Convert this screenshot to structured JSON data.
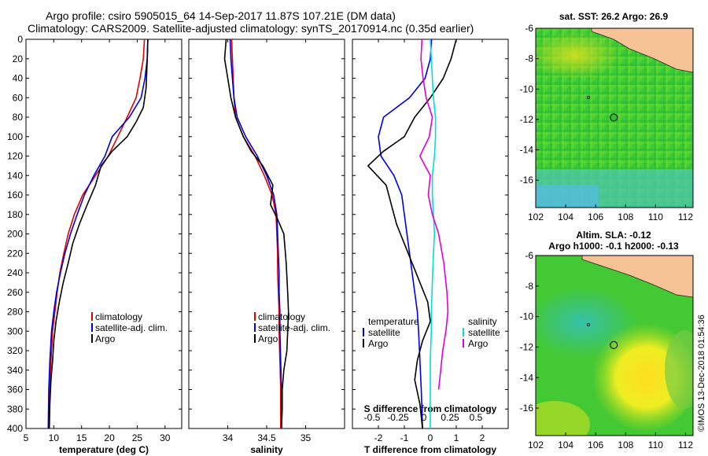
{
  "header": {
    "line1": "Argo profile: csiro 5905015_64 14-Sep-2017 11.87S 107.21E (DM data)",
    "line2": "Climatology: CARS2009. Satellite-adjusted climatology: synTS_20170914.nc (0.35d earlier)"
  },
  "chart_data": [
    {
      "type": "line",
      "name": "temperature-profile",
      "xlabel": "temperature (deg C)",
      "ylabel": "depth",
      "xlim": [
        5,
        33
      ],
      "ylim": [
        400,
        0
      ],
      "xticks": [
        5,
        10,
        15,
        20,
        25,
        30
      ],
      "yticks": [
        0,
        20,
        40,
        60,
        80,
        100,
        120,
        140,
        160,
        180,
        200,
        220,
        240,
        260,
        280,
        300,
        320,
        340,
        360,
        380,
        400
      ],
      "legend_position": "lower-right",
      "series": [
        {
          "name": "climatology",
          "color": "#e00000",
          "x": [
            26.3,
            26.1,
            25.5,
            24.8,
            23.2,
            21.5,
            19.8,
            17.5,
            15.2,
            13.7,
            12.6,
            11.8,
            11.1,
            10.6,
            10.2,
            9.8,
            9.5,
            9.3,
            9.1
          ],
          "y": [
            0,
            20,
            40,
            60,
            80,
            100,
            120,
            140,
            160,
            180,
            200,
            220,
            240,
            260,
            280,
            300,
            330,
            360,
            400
          ]
        },
        {
          "name": "satellite-adj. clim.",
          "color": "#0000dd",
          "x": [
            26.9,
            26.8,
            26.4,
            25.7,
            23.6,
            20.5,
            19.2,
            17.2,
            15.5,
            14.2,
            13.0,
            12.0,
            11.2,
            10.5,
            10.0,
            9.6,
            9.3,
            9.1,
            9.0
          ],
          "y": [
            0,
            20,
            40,
            60,
            80,
            100,
            120,
            140,
            160,
            180,
            200,
            220,
            240,
            260,
            280,
            300,
            330,
            360,
            400
          ]
        },
        {
          "name": "Argo",
          "color": "#000000",
          "x": [
            26.9,
            26.8,
            26.7,
            26.6,
            26.1,
            24.8,
            23.2,
            20.5,
            18.5,
            17.5,
            16.0,
            14.6,
            13.4,
            12.6,
            11.7,
            11.0,
            10.4,
            10.0,
            9.8,
            9.5,
            9.3,
            9.2
          ],
          "y": [
            0,
            20,
            35,
            50,
            70,
            85,
            100,
            115,
            130,
            150,
            170,
            190,
            210,
            230,
            250,
            270,
            290,
            310,
            330,
            350,
            375,
            400
          ]
        }
      ],
      "legend": [
        "climatology",
        "satellite-adj. clim.",
        "Argo"
      ]
    },
    {
      "type": "line",
      "name": "salinity-profile",
      "xlabel": "salinity",
      "ylabel": "depth",
      "xlim": [
        33.5,
        35.5
      ],
      "ylim": [
        400,
        0
      ],
      "xticks": [
        34,
        34.5,
        35
      ],
      "legend_position": "lower-right",
      "series": [
        {
          "name": "climatology",
          "color": "#e00000",
          "x": [
            34.05,
            34.06,
            34.07,
            34.08,
            34.1,
            34.2,
            34.35,
            34.47,
            34.57,
            34.62,
            34.63,
            34.64,
            34.64,
            34.65,
            34.66,
            34.66,
            34.67,
            34.68,
            34.68
          ],
          "y": [
            0,
            20,
            40,
            60,
            80,
            100,
            120,
            140,
            160,
            180,
            200,
            220,
            240,
            260,
            280,
            300,
            330,
            360,
            400
          ]
        },
        {
          "name": "satellite-adj. clim.",
          "color": "#0000dd",
          "x": [
            34.03,
            34.04,
            34.06,
            34.08,
            34.12,
            34.23,
            34.38,
            34.5,
            34.59,
            34.63,
            34.64,
            34.65,
            34.66,
            34.66,
            34.67,
            34.67,
            34.68,
            34.69,
            34.69
          ],
          "y": [
            0,
            20,
            40,
            60,
            80,
            100,
            120,
            140,
            160,
            180,
            200,
            220,
            240,
            260,
            280,
            300,
            330,
            360,
            400
          ]
        },
        {
          "name": "Argo",
          "color": "#000000",
          "x": [
            33.98,
            33.96,
            34.0,
            34.04,
            34.1,
            34.2,
            34.3,
            34.45,
            34.58,
            34.55,
            34.64,
            34.72,
            34.75,
            34.77,
            34.78,
            34.77,
            34.76,
            34.72,
            34.7,
            34.7,
            34.69
          ],
          "y": [
            0,
            20,
            40,
            60,
            80,
            100,
            115,
            130,
            150,
            170,
            185,
            200,
            230,
            260,
            280,
            300,
            320,
            340,
            360,
            380,
            400
          ]
        }
      ],
      "legend": [
        "climatology",
        "satellite-adj. clim.",
        "Argo"
      ]
    },
    {
      "type": "line",
      "name": "difference-profile",
      "xlabel": "T difference from climatology",
      "xlabel2": "S difference from climatology",
      "ylabel": "depth",
      "xlim": [
        -3,
        3
      ],
      "ylim": [
        400,
        0
      ],
      "xticks": [
        -2,
        -1,
        0,
        1,
        2
      ],
      "xticks_top": [
        -0.5,
        -0.25,
        0,
        0.25,
        0.5
      ],
      "series": [
        {
          "name": "temperature satellite",
          "color": "#0000dd",
          "axis": "T",
          "x": [
            0.05,
            0.0,
            -0.2,
            -0.8,
            -1.8,
            -2.0,
            -1.9,
            -1.4,
            -1.1,
            -1.0,
            -0.9,
            -0.8,
            -0.7,
            -0.6,
            -0.5,
            -0.45,
            -0.4,
            -0.35,
            -0.3
          ],
          "y": [
            0,
            20,
            40,
            60,
            80,
            100,
            120,
            140,
            160,
            180,
            200,
            220,
            240,
            260,
            280,
            300,
            330,
            360,
            400
          ]
        },
        {
          "name": "temperature Argo",
          "color": "#000000",
          "axis": "T",
          "x": [
            1.0,
            0.8,
            0.5,
            0.0,
            -0.6,
            -1.0,
            -1.8,
            -2.4,
            -1.7,
            -1.5,
            -1.3,
            -1.0,
            -0.7,
            -0.4,
            -0.1,
            0.0,
            -0.3,
            -0.5,
            -0.6,
            -0.4,
            -0.3
          ],
          "y": [
            0,
            20,
            40,
            60,
            80,
            100,
            115,
            130,
            150,
            170,
            190,
            210,
            230,
            250,
            270,
            290,
            310,
            330,
            350,
            375,
            400
          ]
        },
        {
          "name": "salinity satellite",
          "color": "#00dddd",
          "axis": "S",
          "x": [
            0.0,
            0.01,
            0.02,
            0.03,
            0.05,
            0.05,
            0.04,
            0.02,
            0.02,
            0.03,
            0.04,
            0.03,
            0.02,
            0.01,
            0.01,
            0.0,
            0.0
          ],
          "y": [
            0,
            20,
            40,
            60,
            80,
            100,
            120,
            140,
            160,
            180,
            200,
            220,
            250,
            280,
            300,
            330,
            400
          ]
        },
        {
          "name": "salinity Argo",
          "color": "#dd00dd",
          "axis": "S",
          "x": [
            -0.08,
            -0.09,
            -0.07,
            -0.04,
            0.02,
            -0.01,
            -0.1,
            0.0,
            -0.02,
            0.02,
            0.08,
            0.13,
            0.16,
            0.17,
            0.15,
            0.12,
            0.1,
            0.08
          ],
          "y": [
            0,
            20,
            40,
            60,
            80,
            100,
            120,
            140,
            160,
            180,
            200,
            230,
            260,
            280,
            300,
            320,
            340,
            360
          ]
        }
      ],
      "legend_left_title": "temperature",
      "legend_right_title": "salinity",
      "legend_left": [
        "satellite",
        "Argo"
      ],
      "legend_right": [
        "satellite",
        "Argo"
      ]
    }
  ],
  "maps": [
    {
      "name": "sst-map",
      "title": "sat. SST: 26.2 Argo: 26.9",
      "xticks": [
        102,
        104,
        106,
        108,
        110,
        112
      ],
      "yticks": [
        -6,
        -8,
        -10,
        -12,
        -14,
        -16
      ],
      "xlim": [
        102,
        112.5
      ],
      "ylim": [
        -17.8,
        -6
      ],
      "argo_position": [
        107.21,
        -11.87
      ]
    },
    {
      "name": "sla-map",
      "title": "Altim. SLA: -0.12",
      "title2": "Argo h1000: -0.1 h2000: -0.13",
      "xticks": [
        102,
        104,
        106,
        108,
        110,
        112
      ],
      "yticks": [
        -6,
        -8,
        -10,
        -12,
        -14,
        -16
      ],
      "xlim": [
        102,
        112.5
      ],
      "ylim": [
        -17.8,
        -6
      ],
      "argo_position": [
        107.21,
        -11.87
      ]
    }
  ],
  "footer": {
    "credit": "©IMOS 13-Dec-2018 01:54:36"
  },
  "colors": {
    "land": "#f6c396",
    "sst_green": "#33cc33",
    "sla_green": "#44cc22",
    "cyan": "#55d0d0",
    "yellow": "#eeee22"
  }
}
